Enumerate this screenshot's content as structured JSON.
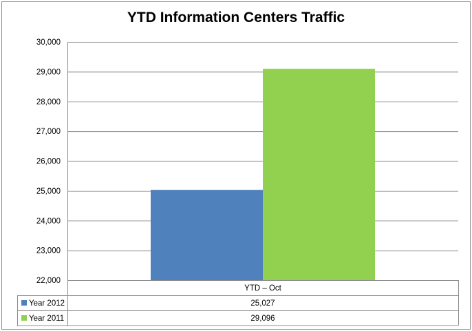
{
  "chart_data": {
    "type": "bar",
    "title": "YTD Information Centers Traffic",
    "xlabel": "",
    "ylabel": "",
    "ylim": [
      22000,
      30000
    ],
    "yticks": [
      22000,
      23000,
      24000,
      25000,
      26000,
      27000,
      28000,
      29000,
      30000
    ],
    "ytick_labels": [
      "22,000",
      "23,000",
      "24,000",
      "25,000",
      "26,000",
      "27,000",
      "28,000",
      "29,000",
      "30,000"
    ],
    "categories": [
      "YTD – Oct"
    ],
    "grid": true,
    "legend": "data-table",
    "series": [
      {
        "name": "Year 2012",
        "values": [
          25027
        ],
        "value_labels": [
          "25,027"
        ],
        "color": "#4f81bd"
      },
      {
        "name": "Year 2011",
        "values": [
          29096
        ],
        "value_labels": [
          "29,096"
        ],
        "color": "#92d050"
      }
    ]
  }
}
